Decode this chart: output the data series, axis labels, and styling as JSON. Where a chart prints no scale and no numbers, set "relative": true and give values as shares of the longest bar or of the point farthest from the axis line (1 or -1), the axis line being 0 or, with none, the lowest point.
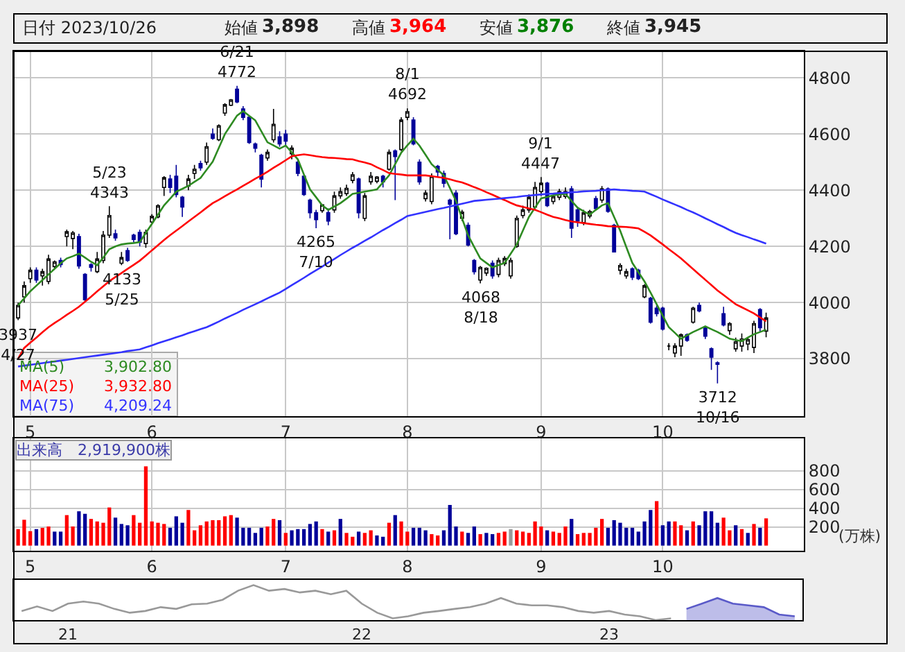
{
  "chart_data": [
    {
      "type": "candlestick",
      "categories": [
        null,
        null,
        "5",
        null,
        null,
        null,
        null,
        null,
        null,
        null,
        null,
        null,
        null,
        null,
        null,
        null,
        null,
        null,
        null,
        null,
        null,
        null,
        "6",
        null,
        null,
        null,
        null,
        null,
        null,
        null,
        null,
        null,
        null,
        null,
        null,
        null,
        null,
        null,
        null,
        null,
        null,
        null,
        null,
        null,
        "7",
        null,
        null,
        null,
        null,
        null,
        null,
        null,
        null,
        null,
        null,
        null,
        null,
        null,
        null,
        null,
        null,
        null,
        null,
        null,
        "8",
        null,
        null,
        null,
        null,
        null,
        null,
        null,
        null,
        null,
        null,
        null,
        null,
        null,
        null,
        null,
        null,
        null,
        null,
        null,
        null,
        null,
        "9",
        null,
        null,
        null,
        null,
        null,
        null,
        null,
        null,
        null,
        null,
        null,
        null,
        null,
        null,
        null,
        null,
        null,
        null,
        null,
        "10",
        null,
        null,
        null,
        null,
        null,
        null,
        null,
        null,
        null,
        null,
        null,
        null,
        null,
        null,
        null,
        null,
        null
      ],
      "ohlc": [
        [
          3945,
          4000,
          3937,
          3990
        ],
        [
          4020,
          4075,
          4000,
          4060
        ],
        [
          4085,
          4125,
          4070,
          4115
        ],
        [
          4115,
          4125,
          4070,
          4080
        ],
        [
          4095,
          4120,
          4060,
          4110
        ],
        [
          4075,
          4170,
          4065,
          4155
        ],
        [
          4128,
          4150,
          4120,
          4145
        ],
        [
          4150,
          4160,
          4125,
          4135
        ],
        [
          4235,
          4260,
          4200,
          4252
        ],
        [
          4228,
          4255,
          4190,
          4248
        ],
        [
          4235,
          4245,
          4120,
          4130
        ],
        [
          4100,
          4105,
          4005,
          4010
        ],
        [
          4135,
          4140,
          4110,
          4125
        ],
        [
          4110,
          4180,
          4105,
          4155
        ],
        [
          4150,
          4255,
          4140,
          4240
        ],
        [
          4240,
          4343,
          4230,
          4310
        ],
        [
          4245,
          4260,
          4220,
          4230
        ],
        [
          4140,
          4180,
          4133,
          4160
        ],
        [
          4185,
          4195,
          4145,
          4150
        ],
        [
          4240,
          4245,
          4215,
          4225
        ],
        [
          4250,
          4260,
          4200,
          4215
        ],
        [
          4210,
          4260,
          4195,
          4250
        ],
        [
          4287,
          4315,
          4280,
          4307
        ],
        [
          4305,
          4350,
          4300,
          4345
        ],
        [
          4410,
          4450,
          4380,
          4445
        ],
        [
          4440,
          4455,
          4390,
          4410
        ],
        [
          4450,
          4490,
          4375,
          4385
        ],
        [
          4375,
          4380,
          4305,
          4340
        ],
        [
          4415,
          4455,
          4400,
          4440
        ],
        [
          4460,
          4490,
          4440,
          4475
        ],
        [
          4495,
          4505,
          4470,
          4480
        ],
        [
          4500,
          4570,
          4490,
          4555
        ],
        [
          4600,
          4620,
          4580,
          4585
        ],
        [
          4580,
          4635,
          4575,
          4630
        ],
        [
          4675,
          4710,
          4665,
          4705
        ],
        [
          4703,
          4725,
          4700,
          4722
        ],
        [
          4760,
          4772,
          4710,
          4715
        ],
        [
          4690,
          4700,
          4650,
          4660
        ],
        [
          4660,
          4665,
          4565,
          4570
        ],
        [
          4565,
          4570,
          4535,
          4550
        ],
        [
          4525,
          4530,
          4410,
          4440
        ],
        [
          4515,
          4545,
          4505,
          4535
        ],
        [
          4580,
          4690,
          4570,
          4635
        ],
        [
          4590,
          4610,
          4555,
          4565
        ],
        [
          4600,
          4615,
          4560,
          4575
        ],
        [
          4530,
          4560,
          4510,
          4550
        ],
        [
          4500,
          4510,
          4450,
          4460
        ],
        [
          4450,
          4455,
          4380,
          4385
        ],
        [
          4365,
          4370,
          4300,
          4320
        ],
        [
          4320,
          4330,
          4265,
          4295
        ],
        [
          4327,
          4350,
          4320,
          4348
        ],
        [
          4320,
          4335,
          4275,
          4290
        ],
        [
          4330,
          4395,
          4320,
          4380
        ],
        [
          4380,
          4410,
          4370,
          4395
        ],
        [
          4388,
          4420,
          4380,
          4407
        ],
        [
          4435,
          4465,
          4425,
          4455
        ],
        [
          4440,
          4445,
          4300,
          4320
        ],
        [
          4300,
          4390,
          4290,
          4380
        ],
        [
          4430,
          4465,
          4420,
          4450
        ],
        [
          4432,
          4450,
          4425,
          4447
        ],
        [
          4450,
          4455,
          4410,
          4430
        ],
        [
          4475,
          4545,
          4470,
          4535
        ],
        [
          4540,
          4545,
          4365,
          4520
        ],
        [
          4545,
          4660,
          4540,
          4650
        ],
        [
          4660,
          4692,
          4650,
          4680
        ],
        [
          4650,
          4660,
          4560,
          4565
        ],
        [
          4500,
          4510,
          4420,
          4430
        ],
        [
          4370,
          4400,
          4360,
          4390
        ],
        [
          4360,
          4460,
          4350,
          4450
        ],
        [
          4485,
          4490,
          4450,
          4465
        ],
        [
          4460,
          4470,
          4410,
          4425
        ],
        [
          4365,
          4370,
          4225,
          4350
        ],
        [
          4390,
          4400,
          4240,
          4245
        ],
        [
          4300,
          4330,
          4290,
          4322
        ],
        [
          4275,
          4285,
          4200,
          4205
        ],
        [
          4150,
          4155,
          4100,
          4110
        ],
        [
          4080,
          4130,
          4068,
          4125
        ],
        [
          4105,
          4125,
          4095,
          4122
        ],
        [
          4140,
          4150,
          4085,
          4095
        ],
        [
          4100,
          4160,
          4090,
          4150
        ],
        [
          4138,
          4165,
          4130,
          4157
        ],
        [
          4095,
          4160,
          4085,
          4150
        ],
        [
          4200,
          4310,
          4195,
          4300
        ],
        [
          4310,
          4345,
          4300,
          4330
        ],
        [
          4330,
          4385,
          4320,
          4375
        ],
        [
          4340,
          4430,
          4330,
          4410
        ],
        [
          4395,
          4447,
          4380,
          4425
        ],
        [
          4425,
          4430,
          4340,
          4345
        ],
        [
          4360,
          4385,
          4350,
          4378
        ],
        [
          4375,
          4405,
          4365,
          4395
        ],
        [
          4378,
          4410,
          4370,
          4395
        ],
        [
          4405,
          4415,
          4230,
          4265
        ],
        [
          4330,
          4340,
          4270,
          4290
        ],
        [
          4285,
          4330,
          4275,
          4320
        ],
        [
          4308,
          4330,
          4300,
          4324
        ],
        [
          4370,
          4380,
          4330,
          4335
        ],
        [
          4365,
          4415,
          4355,
          4405
        ],
        [
          4405,
          4410,
          4320,
          4325
        ],
        [
          4275,
          4280,
          4180,
          4180
        ],
        [
          4115,
          4140,
          4100,
          4132
        ],
        [
          4095,
          4120,
          4085,
          4110
        ],
        [
          4120,
          4125,
          4080,
          4090
        ],
        [
          4115,
          4120,
          4080,
          4085
        ],
        [
          4020,
          4065,
          4015,
          4060
        ],
        [
          4015,
          4020,
          3925,
          3930
        ],
        [
          3980,
          3990,
          3950,
          3960
        ],
        [
          3980,
          3985,
          3900,
          3905
        ],
        [
          3845,
          3855,
          3830,
          3845
        ],
        [
          3820,
          3855,
          3805,
          3845
        ],
        [
          3845,
          3890,
          3810,
          3885
        ],
        [
          3885,
          3890,
          3860,
          3865
        ],
        [
          3930,
          3985,
          3925,
          3980
        ],
        [
          3990,
          4000,
          3965,
          3970
        ],
        [
          3910,
          3915,
          3870,
          3880
        ],
        [
          3835,
          3840,
          3760,
          3805
        ],
        [
          3785,
          3790,
          3712,
          3780
        ],
        [
          3960,
          3985,
          3915,
          3920
        ],
        [
          3900,
          3930,
          3885,
          3925
        ],
        [
          3835,
          3875,
          3825,
          3860
        ],
        [
          3845,
          3890,
          3825,
          3870
        ],
        [
          3852,
          3875,
          3830,
          3868
        ],
        [
          3840,
          3935,
          3820,
          3925
        ],
        [
          3975,
          3980,
          3895,
          3910
        ],
        [
          3898,
          3964,
          3876,
          3945
        ]
      ],
      "colors": [
        "#ffffff",
        "#ffffff",
        "#ffffff",
        "#000099",
        "#ffffff",
        "#ffffff",
        "#ffffff",
        "#000099",
        "#ffffff",
        "#ffffff",
        "#000099",
        "#000099",
        "#000099",
        "#ffffff",
        "#ffffff",
        "#ffffff",
        "#000099",
        "#ffffff",
        "#000099",
        "#000099",
        "#000099",
        "#ffffff",
        "#ffffff",
        "#ffffff",
        "#ffffff",
        "#000099",
        "#000099",
        "#000099",
        "#ffffff",
        "#ffffff",
        "#000099",
        "#ffffff",
        "#000099",
        "#ffffff",
        "#ffffff",
        "#ffffff",
        "#000099",
        "#000099",
        "#000099",
        "#000099",
        "#000099",
        "#ffffff",
        "#ffffff",
        "#000099",
        "#000099",
        "#ffffff",
        "#000099",
        "#000099",
        "#000099",
        "#000099",
        "#ffffff",
        "#000099",
        "#ffffff",
        "#ffffff",
        "#ffffff",
        "#ffffff",
        "#000099",
        "#ffffff",
        "#ffffff",
        "#ffffff",
        "#000099",
        "#ffffff",
        "#000099",
        "#ffffff",
        "#ffffff",
        "#000099",
        "#000099",
        "#ffffff",
        "#ffffff",
        "#000099",
        "#000099",
        "#000099",
        "#000099",
        "#ffffff",
        "#000099",
        "#000099",
        "#ffffff",
        "#ffffff",
        "#000099",
        "#ffffff",
        "#ffffff",
        "#ffffff",
        "#ffffff",
        "#ffffff",
        "#ffffff",
        "#ffffff",
        "#ffffff",
        "#000099",
        "#ffffff",
        "#ffffff",
        "#ffffff",
        "#000099",
        "#000099",
        "#ffffff",
        "#ffffff",
        "#000099",
        "#ffffff",
        "#000099",
        "#000099",
        "#ffffff",
        "#ffffff",
        "#000099",
        "#000099",
        "#ffffff",
        "#000099",
        "#000099",
        "#000099",
        "#000000",
        "#ffffff",
        "#ffffff",
        "#000099",
        "#ffffff",
        "#000099",
        "#000099",
        "#000099",
        "#000099",
        "#000099",
        "#ffffff",
        "#ffffff",
        "#ffffff",
        "#ffffff",
        "#ffffff",
        "#000099",
        "#ffffff"
      ],
      "series": [
        {
          "name": "MA(5)",
          "type": "line",
          "color": "#2e8b22",
          "values": [
            3990,
            4015,
            4040,
            4060,
            4080,
            4100,
            4120,
            4140,
            4157,
            4165,
            4174,
            4160,
            4145,
            4133,
            4160,
            4190,
            4200,
            4207,
            4210,
            4212,
            4215,
            4248,
            4280,
            4313,
            4346,
            4370,
            4395,
            4405,
            4416,
            4430,
            4444,
            4473,
            4502,
            4551,
            4600,
            4633,
            4666,
            4682,
            4665,
            4649,
            4610,
            4571,
            4560,
            4548,
            4559,
            4535,
            4510,
            4456,
            4403,
            4375,
            4346,
            4330,
            4342,
            4354,
            4370,
            4387,
            4391,
            4395,
            4399,
            4403,
            4428,
            4453,
            4493,
            4534,
            4560,
            4584,
            4559,
            4526,
            4493,
            4473,
            4453,
            4408,
            4362,
            4300,
            4239,
            4198,
            4157,
            4141,
            4125,
            4133,
            4141,
            4174,
            4207,
            4256,
            4305,
            4338,
            4371,
            4376,
            4382,
            4385,
            4387,
            4362,
            4338,
            4325,
            4313,
            4330,
            4346,
            4354,
            4305,
            4256,
            4198,
            4141,
            4108,
            4075,
            4035,
            3994,
            3953,
            3912,
            3892,
            3871,
            3883,
            3895,
            3905,
            3915,
            3905,
            3895,
            3883,
            3871,
            3866,
            3862,
            3875,
            3887,
            3895,
            3903
          ]
        },
        {
          "name": "MA(25)",
          "type": "line",
          "color": "#ff0000",
          "values": [
            3800,
            3838,
            3857,
            3875,
            3894,
            3912,
            3927,
            3941,
            3956,
            3970,
            3985,
            4003,
            4021,
            4040,
            4058,
            4076,
            4091,
            4105,
            4120,
            4134,
            4149,
            4167,
            4186,
            4204,
            4223,
            4240,
            4256,
            4272,
            4289,
            4305,
            4321,
            4338,
            4354,
            4366,
            4379,
            4391,
            4403,
            4416,
            4428,
            4441,
            4453,
            4466,
            4480,
            4493,
            4507,
            4521,
            4525,
            4528,
            4525,
            4521,
            4518,
            4516,
            4515,
            4513,
            4511,
            4510,
            4504,
            4499,
            4493,
            4482,
            4472,
            4461,
            4458,
            4456,
            4453,
            4453,
            4453,
            4453,
            4450,
            4447,
            4444,
            4439,
            4433,
            4428,
            4420,
            4411,
            4403,
            4393,
            4384,
            4374,
            4365,
            4355,
            4346,
            4341,
            4335,
            4330,
            4322,
            4313,
            4305,
            4300,
            4294,
            4289,
            4286,
            4283,
            4280,
            4277,
            4275,
            4272,
            4271,
            4270,
            4269,
            4267,
            4264,
            4252,
            4239,
            4223,
            4207,
            4190,
            4174,
            4157,
            4138,
            4119,
            4100,
            4081,
            4062,
            4043,
            4027,
            4010,
            3994,
            3983,
            3972,
            3961,
            3947,
            3933
          ]
        },
        {
          "name": "MA(75)",
          "type": "line",
          "color": "#3333ff",
          "values": [
            3772,
            3775,
            3778,
            3781,
            3784,
            3787,
            3790,
            3793,
            3796,
            3799,
            3802,
            3805,
            3808,
            3811,
            3814,
            3817,
            3820,
            3823,
            3827,
            3830,
            3833,
            3840,
            3847,
            3855,
            3862,
            3869,
            3876,
            3883,
            3891,
            3898,
            3905,
            3912,
            3922,
            3932,
            3943,
            3953,
            3963,
            3974,
            3984,
            3994,
            4004,
            4015,
            4025,
            4035,
            4048,
            4062,
            4075,
            4088,
            4102,
            4115,
            4128,
            4142,
            4155,
            4169,
            4182,
            4195,
            4207,
            4220,
            4232,
            4245,
            4258,
            4270,
            4283,
            4295,
            4308,
            4313,
            4318,
            4323,
            4328,
            4333,
            4337,
            4342,
            4347,
            4352,
            4357,
            4362,
            4364,
            4366,
            4368,
            4370,
            4372,
            4374,
            4376,
            4379,
            4381,
            4383,
            4385,
            4387,
            4388,
            4390,
            4391,
            4393,
            4394,
            4396,
            4397,
            4398,
            4400,
            4401,
            4403,
            4401,
            4400,
            4398,
            4397,
            4395,
            4386,
            4377,
            4367,
            4358,
            4349,
            4340,
            4330,
            4321,
            4311,
            4300,
            4290,
            4279,
            4269,
            4258,
            4248,
            4240,
            4233,
            4225,
            4218,
            4210
          ]
        }
      ],
      "ylim": [
        3595,
        4895
      ],
      "yticks": [
        3800,
        4000,
        4200,
        4400,
        4600,
        4800
      ],
      "grid": true,
      "legend": "bottom left",
      "annotations": [
        "日付 2023/10/26",
        "始値",
        "3,898",
        "高値",
        "3,964",
        "安値",
        "3,876",
        "終値",
        "3,945",
        {
          "text": "3937\n4/27",
          "y": 3937
        },
        {
          "text": "5/23\n4343",
          "y": 4343
        },
        {
          "text": "4133\n5/25",
          "y": 4133
        },
        {
          "text": "6/21\n4772",
          "y": 4772
        },
        {
          "text": "4265\n7/10",
          "y": 4265
        },
        {
          "text": "8/1\n4692",
          "y": 4692
        },
        {
          "text": "4068\n8/18",
          "y": 4068
        },
        {
          "text": "9/1\n4447",
          "y": 4447
        },
        {
          "text": "3712\n10/16",
          "y": 3712
        },
        "3,902.80",
        "3,932.80",
        "4,209.24"
      ]
    },
    {
      "type": "bar",
      "title": "出来高　2,919,900株",
      "ylabel": "(万株)",
      "categories": [
        null,
        null,
        "5",
        null,
        null,
        null,
        null,
        null,
        null,
        null,
        null,
        null,
        null,
        null,
        null,
        null,
        null,
        null,
        null,
        null,
        null,
        null,
        "6",
        null,
        null,
        null,
        null,
        null,
        null,
        null,
        null,
        null,
        null,
        null,
        null,
        null,
        null,
        null,
        null,
        null,
        null,
        null,
        null,
        null,
        "7",
        null,
        null,
        null,
        null,
        null,
        null,
        null,
        null,
        null,
        null,
        null,
        null,
        null,
        null,
        null,
        null,
        null,
        null,
        null,
        "8",
        null,
        null,
        null,
        null,
        null,
        null,
        null,
        null,
        null,
        null,
        null,
        null,
        null,
        null,
        null,
        null,
        null,
        null,
        null,
        null,
        null,
        "9",
        null,
        null,
        null,
        null,
        null,
        null,
        null,
        null,
        null,
        null,
        null,
        null,
        null,
        null,
        null,
        null,
        null,
        null,
        null,
        "10",
        null,
        null,
        null,
        null,
        null,
        null,
        null,
        null,
        null,
        null,
        null,
        null,
        null,
        null,
        null,
        null,
        null
      ],
      "values": [
        177,
        277,
        155,
        177,
        190,
        205,
        150,
        150,
        327,
        205,
        368,
        341,
        286,
        259,
        245,
        409,
        300,
        232,
        218,
        327,
        245,
        850,
        259,
        245,
        232,
        191,
        314,
        245,
        382,
        164,
        218,
        259,
        273,
        273,
        314,
        327,
        300,
        191,
        191,
        136,
        191,
        205,
        286,
        273,
        136,
        164,
        177,
        177,
        232,
        259,
        177,
        150,
        164,
        286,
        136,
        95,
        150,
        136,
        164,
        109,
        95,
        245,
        327,
        259,
        150,
        191,
        191,
        164,
        123,
        109,
        164,
        436,
        205,
        150,
        136,
        205,
        123,
        136,
        123,
        136,
        150,
        177,
        164,
        150,
        136,
        259,
        205,
        164,
        150,
        136,
        205,
        286,
        123,
        136,
        136,
        191,
        286,
        191,
        273,
        245,
        191,
        191,
        150,
        259,
        382,
        477,
        218,
        259,
        259,
        218,
        164,
        259,
        218,
        368,
        368,
        245,
        300,
        164,
        218,
        177,
        136,
        232,
        191,
        292
      ],
      "colors": [
        "#ff0000",
        "#ff0000",
        "#ff0000",
        "#000099",
        "#ff0000",
        "#ff0000",
        "#000099",
        "#000099",
        "#ff0000",
        "#ff0000",
        "#000099",
        "#000099",
        "#ff0000",
        "#ff0000",
        "#ff0000",
        "#ff0000",
        "#000099",
        "#000099",
        "#000099",
        "#ff0000",
        "#ff0000",
        "#ff0000",
        "#ff0000",
        "#ff0000",
        "#ff0000",
        "#000099",
        "#000099",
        "#000099",
        "#ff0000",
        "#ff0000",
        "#ff0000",
        "#ff0000",
        "#ff0000",
        "#ff0000",
        "#ff0000",
        "#ff0000",
        "#000099",
        "#000099",
        "#000099",
        "#000099",
        "#000099",
        "#ff0000",
        "#ff0000",
        "#000099",
        "#ff0000",
        "#000099",
        "#000099",
        "#000099",
        "#000099",
        "#000099",
        "#ff0000",
        "#000099",
        "#ff0000",
        "#000099",
        "#ff0000",
        "#ff0000",
        "#000099",
        "#ff0000",
        "#ff0000",
        "#000099",
        "#000099",
        "#ff0000",
        "#000099",
        "#ff0000",
        "#ff0000",
        "#000099",
        "#000099",
        "#000099",
        "#ff0000",
        "#ff0000",
        "#000099",
        "#000099",
        "#000099",
        "#ff0000",
        "#000099",
        "#000099",
        "#ff0000",
        "#000099",
        "#000099",
        "#ff0000",
        "#ff0000",
        "#999999",
        "#ff0000",
        "#ff0000",
        "#ff0000",
        "#ff0000",
        "#ff0000",
        "#000099",
        "#ff0000",
        "#ff0000",
        "#ff0000",
        "#000099",
        "#ff0000",
        "#ff0000",
        "#ff0000",
        "#ff0000",
        "#ff0000",
        "#000099",
        "#000099",
        "#000099",
        "#000099",
        "#000099",
        "#000099",
        "#000099",
        "#000099",
        "#ff0000",
        "#000099",
        "#000099",
        "#ff0000",
        "#ff0000",
        "#000099",
        "#ff0000",
        "#000099",
        "#000099",
        "#000099",
        "#000099",
        "#ff0000",
        "#ff0000",
        "#000099",
        "#ff0000",
        "#000099",
        "#ff0000",
        "#000099",
        "#ff0000"
      ],
      "ylim": [
        -55,
        1150
      ],
      "yticks": [
        200,
        400,
        600,
        800
      ],
      "grid": true
    },
    {
      "type": "line",
      "relative": true,
      "categories": [
        null,
        null,
        null,
        "21",
        null,
        null,
        null,
        null,
        null,
        null,
        null,
        null,
        null,
        null,
        null,
        null,
        null,
        null,
        null,
        null,
        null,
        null,
        "22",
        null,
        null,
        null,
        null,
        null,
        null,
        null,
        null,
        null,
        null,
        null,
        null,
        null,
        null,
        null,
        "23",
        null,
        null,
        null,
        null,
        null,
        null,
        null,
        null,
        null,
        null,
        null,
        null
      ],
      "series": [
        {
          "type": "line",
          "color": "#999999",
          "values": [
            0.26,
            0.39,
            0.26,
            0.47,
            0.53,
            0.47,
            0.32,
            0.21,
            0.26,
            0.37,
            0.32,
            0.45,
            0.47,
            0.58,
            0.84,
            1,
            0.84,
            0.89,
            0.79,
            0.84,
            0.74,
            0.84,
            0.47,
            0.21,
            0.05,
            0.11,
            0.21,
            0.26,
            0.32,
            0.37,
            0.47,
            0.63,
            0.47,
            0.42,
            0.42,
            0.37,
            0.26,
            0.21,
            0.26,
            0.16,
            0.11,
            0,
            0.05,
            null,
            null,
            null,
            null,
            null,
            null,
            null,
            null
          ]
        },
        {
          "type": "area",
          "color": "#5a5ac8",
          "values": [
            null,
            null,
            null,
            null,
            null,
            null,
            null,
            null,
            null,
            null,
            null,
            null,
            null,
            null,
            null,
            null,
            null,
            null,
            null,
            null,
            null,
            null,
            null,
            null,
            null,
            null,
            null,
            null,
            null,
            null,
            null,
            null,
            null,
            null,
            null,
            null,
            null,
            null,
            null,
            null,
            null,
            null,
            null,
            0.32,
            0.47,
            0.63,
            0.47,
            0.42,
            0.37,
            0.16,
            0.11
          ]
        }
      ]
    }
  ]
}
